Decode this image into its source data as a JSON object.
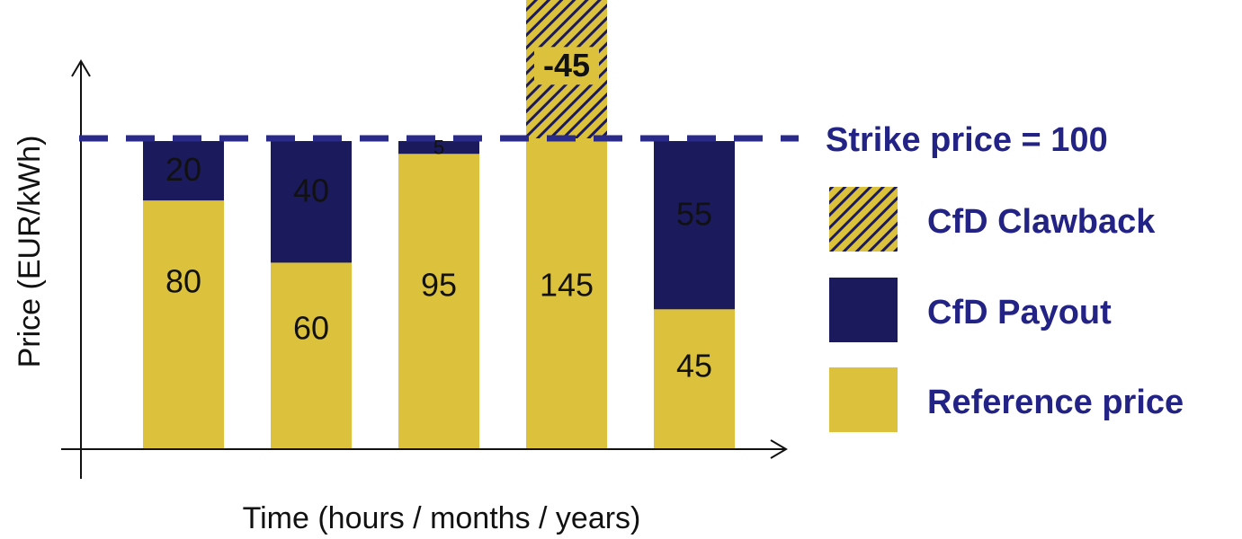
{
  "chart_data": {
    "type": "bar",
    "stacked": true,
    "xlabel": "Time (hours / months / years)",
    "ylabel": "Price (EUR/kWh)",
    "ylim": [
      0,
      100
    ],
    "grid": false,
    "legend_position": "right",
    "strike_price": {
      "value": 100,
      "label": "Strike price = 100"
    },
    "bars": [
      {
        "reference": 80,
        "payout": 20,
        "clawback": null,
        "labels": {
          "reference": "80",
          "payout": "20"
        }
      },
      {
        "reference": 60,
        "payout": 40,
        "clawback": null,
        "labels": {
          "reference": "60",
          "payout": "40"
        }
      },
      {
        "reference": 95,
        "payout": 5,
        "clawback": null,
        "labels": {
          "reference": "95",
          "payout": "5"
        }
      },
      {
        "reference": 100,
        "payout": null,
        "clawback": 45,
        "labels": {
          "reference": "145",
          "clawback": "-45"
        }
      },
      {
        "reference": 45,
        "payout": 55,
        "clawback": null,
        "labels": {
          "reference": "45",
          "payout": "55"
        }
      }
    ],
    "series": [
      {
        "key": "clawback",
        "name": "CfD Clawback",
        "color": "#dcc23c",
        "pattern": "hatch"
      },
      {
        "key": "payout",
        "name": "CfD Payout",
        "color": "#1b1a5c"
      },
      {
        "key": "reference",
        "name": "Reference price",
        "color": "#dcc23c"
      }
    ],
    "colors": {
      "reference": "#dcc23c",
      "payout": "#1b1a5c",
      "hatch": "#1b1a5c",
      "strike_line": "#2a2a8a",
      "legend_text": "#232386",
      "payout_label": "#ffffff",
      "reference_label": "#111111"
    }
  }
}
